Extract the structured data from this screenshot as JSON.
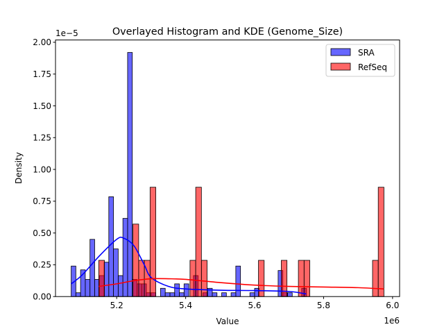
{
  "chart_data": {
    "type": "histogram+kde",
    "title": "Overlayed Histogram and KDE (Genome_Size)",
    "xlabel": "Value",
    "ylabel": "Density",
    "x_offset_label": "1e6",
    "y_offset_label": "1e−5",
    "xlim": [
      5.0226,
      6.0204
    ],
    "ylim": [
      0,
      2.018
    ],
    "xticks": [
      5.2,
      5.4,
      5.6,
      5.8,
      6.0
    ],
    "xtick_labels": [
      "5.2",
      "5.4",
      "5.6",
      "5.8",
      "6.0"
    ],
    "yticks": [
      0,
      0.25,
      0.5,
      0.75,
      1.0,
      1.25,
      1.5,
      1.75,
      2.0
    ],
    "ytick_labels": [
      "0.00",
      "0.25",
      "0.50",
      "0.75",
      "1.00",
      "1.25",
      "1.50",
      "1.75",
      "2.00"
    ],
    "grid": false,
    "legend_position": "top-right",
    "series": [
      {
        "name": "SRA",
        "color": "#0000ff",
        "bin_start": 5.068,
        "bin_width": 0.01364,
        "densities": [
          0.24,
          0.03,
          0.21,
          0.135,
          0.45,
          0.135,
          0.165,
          0.27,
          0.785,
          0.375,
          0.165,
          0.615,
          1.92,
          0.135,
          0.1,
          0.1,
          0.03,
          0.03,
          0,
          0.065,
          0.03,
          0.03,
          0.1,
          0.03,
          0.1,
          0,
          0.165,
          0,
          0.03,
          0.065,
          0.03,
          0,
          0.03,
          0,
          0.03,
          0.24,
          0,
          0,
          0.03,
          0.065,
          0,
          0,
          0,
          0,
          0.205,
          0.03,
          0.03,
          0,
          0,
          0.065
        ],
        "kde": {
          "x": [
            5.068,
            5.1,
            5.15,
            5.2,
            5.22,
            5.25,
            5.28,
            5.3,
            5.35,
            5.4,
            5.5,
            5.6,
            5.7,
            5.75
          ],
          "y": [
            0.1,
            0.17,
            0.32,
            0.45,
            0.46,
            0.4,
            0.25,
            0.15,
            0.08,
            0.06,
            0.05,
            0.047,
            0.04,
            0.02
          ]
        }
      },
      {
        "name": "RefSeq",
        "color": "#ff0000",
        "bin_start": 5.148,
        "bin_width": 0.01654,
        "densities": [
          0.285,
          0,
          0,
          0,
          0,
          0,
          0.57,
          0.285,
          0.285,
          0.86,
          0,
          0,
          0,
          0,
          0,
          0,
          0.285,
          0.86,
          0.285,
          0,
          0,
          0,
          0,
          0,
          0,
          0,
          0,
          0,
          0.285,
          0,
          0,
          0,
          0.285,
          0,
          0,
          0.285,
          0.285,
          0,
          0,
          0,
          0,
          0,
          0,
          0,
          0,
          0,
          0,
          0,
          0.285,
          0.86
        ],
        "kde": {
          "x": [
            5.148,
            5.2,
            5.25,
            5.3,
            5.35,
            5.4,
            5.5,
            5.6,
            5.7,
            5.8,
            5.9,
            5.975
          ],
          "y": [
            0.08,
            0.1,
            0.125,
            0.14,
            0.14,
            0.135,
            0.11,
            0.09,
            0.08,
            0.075,
            0.07,
            0.06
          ]
        }
      }
    ]
  }
}
